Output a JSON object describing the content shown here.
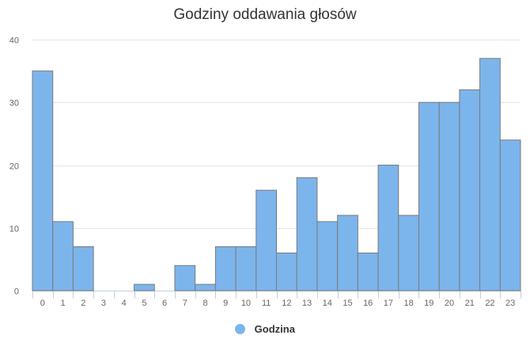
{
  "chart_data": {
    "type": "bar",
    "title": "Godziny oddawania głosów",
    "xlabel": "",
    "ylabel": "",
    "categories": [
      "0",
      "1",
      "2",
      "3",
      "4",
      "5",
      "6",
      "7",
      "8",
      "9",
      "10",
      "11",
      "12",
      "13",
      "14",
      "15",
      "16",
      "17",
      "18",
      "19",
      "20",
      "21",
      "22",
      "23"
    ],
    "series": [
      {
        "name": "Godzina",
        "color": "#7cb5ec",
        "values": [
          35,
          11,
          7,
          0,
          0,
          1,
          0,
          4,
          1,
          7,
          7,
          16,
          6,
          18,
          11,
          12,
          6,
          20,
          12,
          30,
          30,
          32,
          37,
          24
        ]
      }
    ],
    "ylim": [
      0,
      40
    ],
    "yticks": [
      0,
      10,
      20,
      30,
      40
    ],
    "grid": true,
    "legend_position": "bottom-center"
  }
}
